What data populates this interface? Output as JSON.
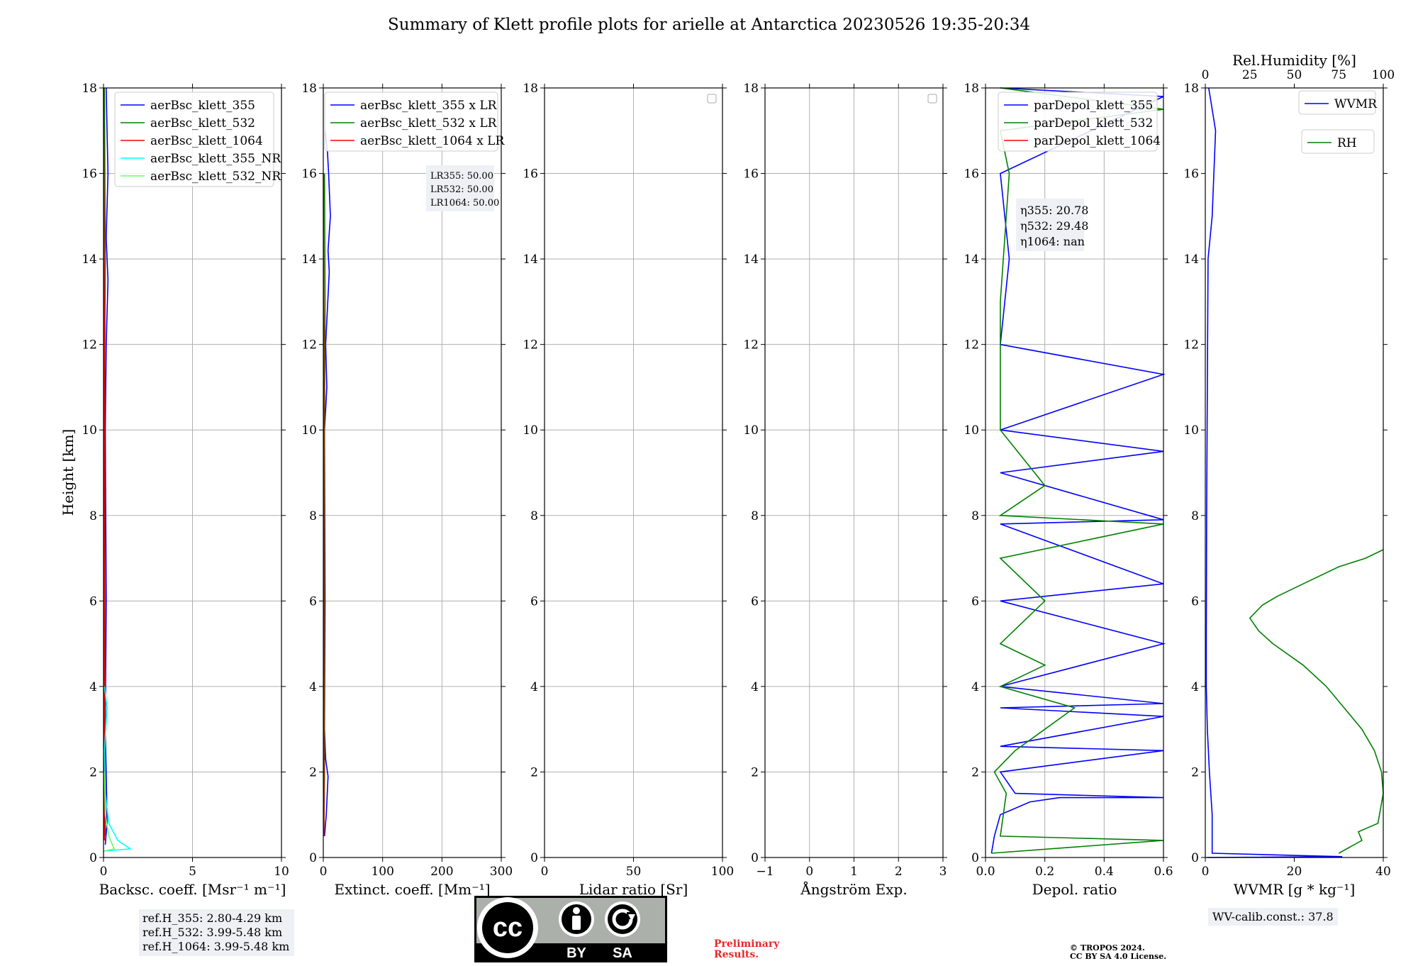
{
  "title": "Summary of Klett profile plots for arielle at Antarctica 20230526 19:35-20:34",
  "ylabel": "Height [km]",
  "colors": {
    "blue": "#0000ff",
    "green": "#008000",
    "red": "#ff0000",
    "cyan": "#00ffff",
    "lime": "#66ff66",
    "grid": "#b0b0b0",
    "infobox": "#eef0f5"
  },
  "chart_data": [
    {
      "id": "backscatter",
      "type": "line",
      "xlabel": "Backsc. coeff. [Msr⁻¹ m⁻¹]",
      "xlim": [
        0,
        10
      ],
      "xticks": [
        "0",
        "5",
        "10"
      ],
      "ylim": [
        0,
        18
      ],
      "yticks": [
        "0",
        "2",
        "4",
        "6",
        "8",
        "10",
        "12",
        "14",
        "16",
        "18"
      ],
      "grid": true,
      "legend": "top-right",
      "series": [
        {
          "name": "aerBsc_klett_355",
          "color": "#0000ff",
          "points": [
            [
              0.1,
              0.3
            ],
            [
              0.2,
              0.8
            ],
            [
              0.15,
              2.0
            ],
            [
              0.1,
              3.0
            ],
            [
              0.15,
              6.0
            ],
            [
              0.1,
              10.0
            ],
            [
              0.15,
              12.0
            ],
            [
              0.25,
              13.5
            ],
            [
              0.15,
              14.5
            ],
            [
              0.25,
              16.0
            ],
            [
              0.2,
              17.0
            ],
            [
              0.15,
              18.0
            ]
          ]
        },
        {
          "name": "aerBsc_klett_532",
          "color": "#008000",
          "points": [
            [
              0.1,
              0.5
            ],
            [
              0.1,
              3.0
            ],
            [
              0.05,
              10.0
            ],
            [
              0.1,
              14.0
            ],
            [
              0.05,
              18.0
            ]
          ]
        },
        {
          "name": "aerBsc_klett_1064",
          "color": "#ff0000",
          "points": [
            [
              0.05,
              0.4
            ],
            [
              0.05,
              12.0
            ],
            [
              0.0,
              18.0
            ]
          ]
        },
        {
          "name": "aerBsc_klett_355_NR",
          "color": "#00ffff",
          "points": [
            [
              0.0,
              0.15
            ],
            [
              1.5,
              0.2
            ],
            [
              0.8,
              0.4
            ],
            [
              0.3,
              0.8
            ],
            [
              0.1,
              1.5
            ],
            [
              0.05,
              2.5
            ],
            [
              0.2,
              3.5
            ],
            [
              0.05,
              4.0
            ]
          ]
        },
        {
          "name": "aerBsc_klett_532_NR",
          "color": "#66ff66",
          "points": [
            [
              0.0,
              0.15
            ],
            [
              0.6,
              0.2
            ],
            [
              0.3,
              0.5
            ],
            [
              0.1,
              1.0
            ],
            [
              0.05,
              2.0
            ]
          ]
        }
      ],
      "infobox": [
        "ref.H_355: 2.80-4.29 km",
        "ref.H_532: 3.99-5.48 km",
        "ref.H_1064: 3.99-5.48 km"
      ]
    },
    {
      "id": "extinction",
      "type": "line",
      "xlabel": "Extinct. coeff. [Mm⁻¹]",
      "xlim": [
        0,
        300
      ],
      "xticks": [
        "0",
        "100",
        "200",
        "300"
      ],
      "ylim": [
        0,
        18
      ],
      "grid": true,
      "legend": "top-right",
      "series": [
        {
          "name": "aerBsc_klett_355 x LR",
          "color": "#0000ff",
          "points": [
            [
              2,
              0.5
            ],
            [
              5,
              1.0
            ],
            [
              8,
              1.9
            ],
            [
              4,
              2.3
            ],
            [
              2,
              3.0
            ],
            [
              3,
              6.0
            ],
            [
              2,
              10.0
            ],
            [
              6,
              11.0
            ],
            [
              4,
              12.0
            ],
            [
              10,
              13.7
            ],
            [
              8,
              14.2
            ],
            [
              12,
              15.0
            ],
            [
              9,
              16.0
            ],
            [
              7,
              16.5
            ],
            [
              3,
              17.0
            ]
          ]
        },
        {
          "name": "aerBsc_klett_532 x LR",
          "color": "#008000",
          "points": [
            [
              1,
              0.5
            ],
            [
              2,
              2.0
            ],
            [
              2,
              10.0
            ],
            [
              3,
              13.0
            ],
            [
              2,
              16.0
            ]
          ]
        },
        {
          "name": "aerBsc_klett_1064 x LR",
          "color": "#ff0000",
          "points": [
            [
              1,
              0.5
            ],
            [
              1,
              12.0
            ],
            [
              0,
              16.0
            ]
          ]
        }
      ],
      "annotation": [
        "LR355: 50.00",
        "LR532: 50.00",
        "LR1064: 50.00"
      ]
    },
    {
      "id": "lidar_ratio",
      "type": "line",
      "xlabel": "Lidar ratio [Sr]",
      "xlim": [
        0,
        120
      ],
      "xticks": [
        "0",
        "50",
        "100"
      ],
      "ylim": [
        0,
        18
      ],
      "grid": true,
      "series": []
    },
    {
      "id": "angstrom",
      "type": "line",
      "xlabel": "Ångström Exp.",
      "xlim": [
        -1,
        3
      ],
      "xticks": [
        "−1",
        "0",
        "1",
        "2",
        "3"
      ],
      "ylim": [
        0,
        18
      ],
      "grid": true,
      "series": []
    },
    {
      "id": "depol",
      "type": "line",
      "xlabel": "Depol. ratio",
      "xlim": [
        0,
        0.6
      ],
      "xticks": [
        "0.0",
        "0.2",
        "0.4",
        "0.6"
      ],
      "ylim": [
        0,
        18
      ],
      "grid": true,
      "legend": "top-right",
      "series": [
        {
          "name": "parDepol_klett_355",
          "color": "#0000ff",
          "points": [
            [
              0.02,
              0.1
            ],
            [
              0.03,
              0.5
            ],
            [
              0.05,
              1.0
            ],
            [
              0.15,
              1.3
            ],
            [
              0.25,
              1.4
            ],
            [
              0.6,
              1.4
            ],
            [
              0.1,
              1.5
            ],
            [
              0.05,
              2.0
            ],
            [
              0.6,
              2.5
            ],
            [
              0.05,
              2.6
            ],
            [
              0.6,
              3.3
            ],
            [
              0.05,
              3.5
            ],
            [
              0.6,
              3.6
            ],
            [
              0.05,
              4.0
            ],
            [
              0.6,
              5.0
            ],
            [
              0.05,
              6.0
            ],
            [
              0.6,
              6.4
            ],
            [
              0.05,
              7.8
            ],
            [
              0.6,
              7.9
            ],
            [
              0.05,
              9.0
            ],
            [
              0.6,
              9.5
            ],
            [
              0.05,
              10.0
            ],
            [
              0.6,
              11.3
            ],
            [
              0.05,
              12.0
            ],
            [
              0.08,
              14.0
            ],
            [
              0.05,
              16.0
            ],
            [
              0.6,
              17.8
            ],
            [
              0.05,
              18.0
            ]
          ]
        },
        {
          "name": "parDepol_klett_532",
          "color": "#008000",
          "points": [
            [
              0.02,
              0.1
            ],
            [
              0.6,
              0.4
            ],
            [
              0.05,
              0.5
            ],
            [
              0.07,
              1.5
            ],
            [
              0.03,
              2.0
            ],
            [
              0.1,
              2.5
            ],
            [
              0.2,
              3.0
            ],
            [
              0.3,
              3.5
            ],
            [
              0.05,
              4.0
            ],
            [
              0.2,
              4.5
            ],
            [
              0.05,
              5.0
            ],
            [
              0.2,
              6.0
            ],
            [
              0.05,
              7.0
            ],
            [
              0.6,
              7.8
            ],
            [
              0.05,
              8.0
            ],
            [
              0.2,
              8.7
            ],
            [
              0.05,
              10.0
            ],
            [
              0.05,
              13.0
            ],
            [
              0.08,
              16.0
            ],
            [
              0.05,
              17.0
            ],
            [
              0.6,
              17.5
            ],
            [
              0.05,
              18.0
            ]
          ]
        },
        {
          "name": "parDepol_klett_1064",
          "color": "#ff0000",
          "points": []
        }
      ],
      "annotation": [
        "η355: 20.78",
        "η532: 29.48",
        "η1064: nan"
      ]
    },
    {
      "id": "wvmr",
      "type": "line",
      "xlabel": "WVMR [g * kg⁻¹]",
      "xlim": [
        0,
        52
      ],
      "xticks": [
        "0",
        "20",
        "40"
      ],
      "x2label": "Rel.Humidity [%]",
      "x2lim": [
        0,
        100
      ],
      "x2ticks": [
        "0",
        "25",
        "50",
        "75",
        "100"
      ],
      "ylim": [
        0,
        18
      ],
      "grid": false,
      "legend": "top-right",
      "series": [
        {
          "name": "WVMR",
          "axis": "x",
          "color": "#0000ff",
          "points": [
            [
              0.5,
              0.0
            ],
            [
              40,
              0.02
            ],
            [
              2,
              0.1
            ],
            [
              2,
              1.0
            ],
            [
              1.2,
              2.0
            ],
            [
              0.6,
              3.0
            ],
            [
              0.3,
              4.0
            ],
            [
              0.3,
              5.0
            ],
            [
              0.4,
              8.0
            ],
            [
              0.8,
              14.0
            ],
            [
              2,
              15.0
            ],
            [
              3,
              17.0
            ],
            [
              2,
              17.5
            ],
            [
              1,
              18.0
            ]
          ]
        },
        {
          "name": "RH",
          "axis": "x2",
          "color": "#008000",
          "points": [
            [
              75,
              0.1
            ],
            [
              88,
              0.4
            ],
            [
              86,
              0.6
            ],
            [
              97,
              0.8
            ],
            [
              100,
              1.5
            ],
            [
              99,
              2.0
            ],
            [
              95,
              2.5
            ],
            [
              88,
              3.0
            ],
            [
              78,
              3.5
            ],
            [
              68,
              4.0
            ],
            [
              55,
              4.5
            ],
            [
              38,
              5.0
            ],
            [
              30,
              5.3
            ],
            [
              25,
              5.6
            ],
            [
              32,
              5.9
            ],
            [
              40,
              6.1
            ],
            [
              55,
              6.4
            ],
            [
              75,
              6.8
            ],
            [
              90,
              7.0
            ],
            [
              100,
              7.2
            ]
          ]
        }
      ],
      "annotation": [
        "WV-calib.const.: 37.8"
      ]
    }
  ],
  "footer": {
    "preliminary": [
      "Preliminary",
      "Results."
    ],
    "copyright": [
      "© TROPOS 2024.",
      "CC BY SA 4.0 License."
    ],
    "license_badge": [
      "cc",
      "BY",
      "SA"
    ]
  }
}
